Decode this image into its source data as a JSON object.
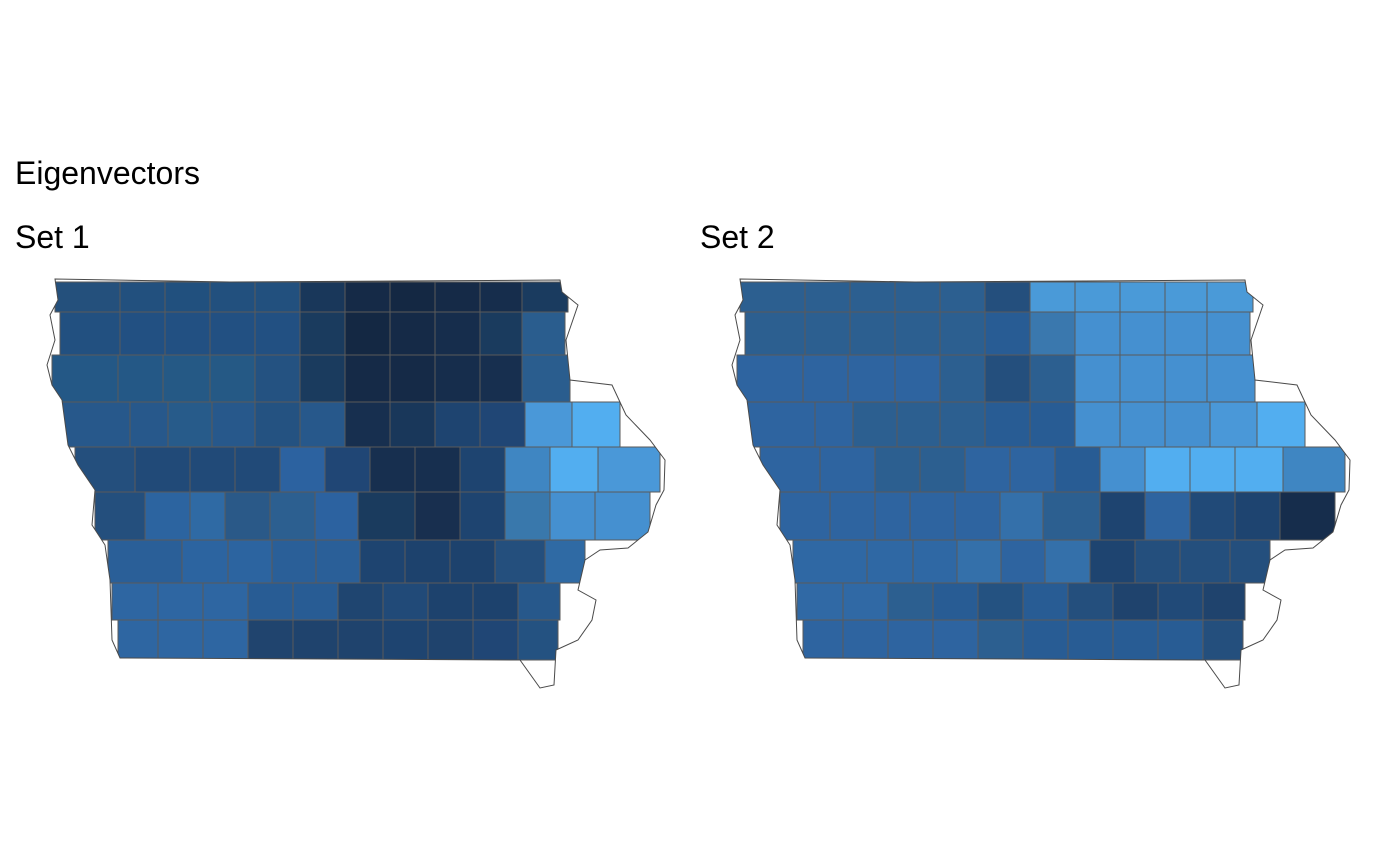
{
  "title": "Eigenvectors",
  "panels": [
    {
      "label": "Set 1",
      "rows": [
        [
          "#24507c",
          "#22507e",
          "#21507e",
          "#22507e",
          "#22507e",
          "#19375a",
          "#152a47",
          "#142843",
          "#152a47",
          "#162d4c",
          "#1a3b5f"
        ],
        [
          "#225080",
          "#225082",
          "#225082",
          "#225082",
          "#225082",
          "#1a3b5e",
          "#142843",
          "#152a47",
          "#162d4c",
          "#1a3b5e",
          "#2a5d8e"
        ],
        [
          "#245886",
          "#245886",
          "#255985",
          "#255985",
          "#245281",
          "#1a3b5e",
          "#152a47",
          "#152a47",
          "#162d4c",
          "#172f4f",
          "#2a5d8e"
        ],
        [
          "#27588b",
          "#27588b",
          "#275b8a",
          "#27588b",
          "#245281",
          "#27588b",
          "#172f4f",
          "#19375a",
          "#1e4470",
          "#204675",
          "#4a98d8",
          "#52aef0"
        ],
        [
          "#244f7d",
          "#214a78",
          "#214a78",
          "#214a78",
          "#2c62a0",
          "#204675",
          "#172f4f",
          "#172f4f",
          "#1e4470",
          "#3f86c2",
          "#52aef0",
          "#4a98d8"
        ],
        [
          "#244f7d",
          "#2c64a0",
          "#2f6aa4",
          "#2a5988",
          "#2c5f90",
          "#2c62a0",
          "#1a3b5e",
          "#182f4f",
          "#1e4470",
          "#3978ac",
          "#4590d0",
          "#4590d0"
        ],
        [
          "#2a5f98",
          "#2c64a0",
          "#2c64a0",
          "#2a5f98",
          "#2a5f98",
          "#1e4470",
          "#1d426d",
          "#1d426d",
          "#244f7d",
          "#2f6aa4",
          "#2a5d8e"
        ],
        [
          "#2e66a2",
          "#2e66a2",
          "#2e66a2",
          "#285c94",
          "#285c94",
          "#1f4570",
          "#214a78",
          "#1d426d",
          "#1d426d",
          "#27588b",
          "#245281"
        ],
        [
          "#2e66a2",
          "#2e66a2",
          "#2e66a2",
          "#20446e",
          "#1f436d",
          "#1f436d",
          "#1e4470",
          "#1f436d",
          "#204675",
          "#245281",
          "#245281"
        ]
      ]
    },
    {
      "label": "Set 2",
      "rows": [
        [
          "#2c5f90",
          "#2c5f90",
          "#2c5f90",
          "#2c5f90",
          "#2c5f90",
          "#244f7d",
          "#4a9ad8",
          "#4a9ad8",
          "#4a9ad8",
          "#4a9ad8",
          "#4a9ad8"
        ],
        [
          "#2c5f90",
          "#2c5f90",
          "#2c5f90",
          "#2c5f90",
          "#2c5f90",
          "#285c94",
          "#3a78ae",
          "#4590d0",
          "#4590d0",
          "#4590d0",
          "#4590d0"
        ],
        [
          "#2e64a0",
          "#2e64a0",
          "#2e64a0",
          "#2e64a0",
          "#2c5f90",
          "#244f7d",
          "#2c5f90",
          "#4590d0",
          "#4590d0",
          "#4590d0",
          "#4590d0"
        ],
        [
          "#2e64a0",
          "#2e64a0",
          "#2c5f90",
          "#2c5f90",
          "#2c5f90",
          "#285c94",
          "#285c94",
          "#4590d0",
          "#4590d0",
          "#4590d0",
          "#4a98d8",
          "#52aef0"
        ],
        [
          "#2e64a0",
          "#2e64a0",
          "#2c5f90",
          "#2c5f90",
          "#2e64a0",
          "#2e64a0",
          "#285c94",
          "#4590d0",
          "#52aef0",
          "#52aef0",
          "#52aef0",
          "#3f86c2"
        ],
        [
          "#2e64a0",
          "#2e64a0",
          "#2e64a0",
          "#2e64a0",
          "#2e64a0",
          "#3470aa",
          "#2c5f90",
          "#1e4470",
          "#2e64a0",
          "#214a78",
          "#1e4470",
          "#162d4c"
        ],
        [
          "#2f68a4",
          "#2f68a4",
          "#2f68a4",
          "#3470aa",
          "#2e64a0",
          "#3470aa",
          "#1e4470",
          "#244f7d",
          "#244f7d",
          "#244f7d",
          "#1f436d"
        ],
        [
          "#3069a5",
          "#3069a5",
          "#2c5f90",
          "#285c94",
          "#245281",
          "#285c94",
          "#244f7d",
          "#1f436d",
          "#214a78",
          "#1f436d",
          "#1f436d"
        ],
        [
          "#2e64a0",
          "#2e64a0",
          "#2e64a0",
          "#2e64a0",
          "#2c5f90",
          "#285c94",
          "#285c94",
          "#285c94",
          "#285c94",
          "#244f7d",
          "#244f7d"
        ]
      ]
    }
  ]
}
